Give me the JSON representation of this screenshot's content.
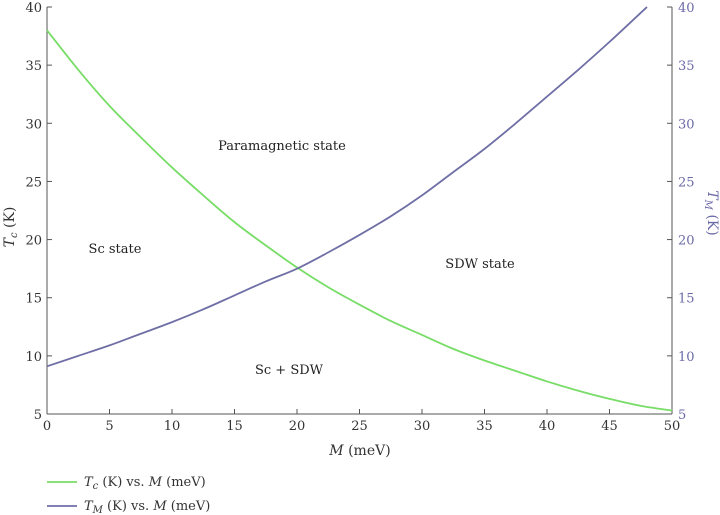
{
  "chart_data": {
    "type": "line",
    "xlabel": "M (meV)",
    "ylabel_left": "Tc (K)",
    "ylabel_right": "TM (K)",
    "xlim": [
      0,
      50
    ],
    "ylim_left": [
      5,
      40
    ],
    "ylim_right": [
      5,
      40
    ],
    "x_ticks": [
      0,
      5,
      10,
      15,
      20,
      25,
      30,
      35,
      40,
      45,
      50
    ],
    "y_ticks": [
      5,
      10,
      15,
      20,
      25,
      30,
      35,
      40
    ],
    "grid": false,
    "legend_position": "bottom-left",
    "annotations": [
      "Paramagnetic state",
      "Sc state",
      "SDW state",
      "Sc + SDW"
    ],
    "colors": {
      "Tc": "#77dd66",
      "TM": "#6f6fa6",
      "right_axis": "#6a6aa8"
    },
    "series": [
      {
        "name": "Tc (K) vs. M (meV)",
        "axis": "left",
        "x": [
          0,
          2.5,
          5,
          7.5,
          10,
          12.5,
          15,
          17.5,
          20,
          22.5,
          25,
          27.5,
          30,
          32.5,
          35,
          37.5,
          40,
          42.5,
          45,
          47.5,
          50
        ],
        "y": [
          38.0,
          34.6,
          31.5,
          28.8,
          26.2,
          23.8,
          21.5,
          19.5,
          17.6,
          15.9,
          14.4,
          13.0,
          11.8,
          10.6,
          9.6,
          8.7,
          7.8,
          7.0,
          6.3,
          5.7,
          5.3
        ]
      },
      {
        "name": "TM (K) vs. M (meV)",
        "axis": "right",
        "x": [
          0,
          2.5,
          5,
          7.5,
          10,
          12.5,
          15,
          17.5,
          20,
          22.5,
          25,
          27.5,
          30,
          32.5,
          35,
          37.5,
          40,
          42.5,
          45,
          47.5,
          48
        ],
        "y": [
          9.1,
          10.0,
          10.9,
          11.9,
          12.9,
          14.0,
          15.2,
          16.4,
          17.5,
          18.9,
          20.4,
          22.0,
          23.8,
          25.8,
          27.8,
          30.0,
          32.3,
          34.6,
          37.0,
          39.5,
          40.0
        ]
      }
    ]
  }
}
